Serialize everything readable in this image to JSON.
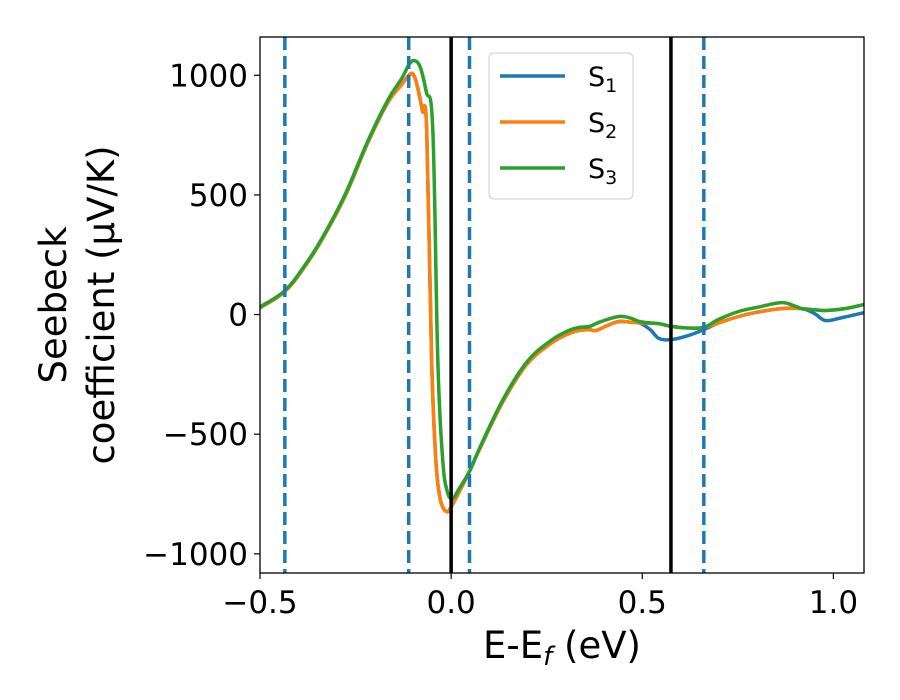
{
  "chart_data": {
    "type": "line",
    "title": "",
    "xlabel": "E-E",
    "xlabel_sub": "f",
    "xlabel_unit": " (eV)",
    "ylabel_line1": "Seebeck",
    "ylabel_line2": "coefficient  (μV/K)",
    "xlim": [
      -0.5,
      1.08
    ],
    "ylim": [
      -1080,
      1160
    ],
    "xticks": [
      -0.5,
      0.0,
      0.5,
      1.0
    ],
    "xtick_labels": [
      "−0.5",
      "0.0",
      "0.5",
      "1.0"
    ],
    "yticks": [
      -1000,
      -500,
      0,
      500,
      1000
    ],
    "ytick_labels": [
      "−1000",
      "−500",
      "0",
      "500",
      "1000"
    ],
    "grid": false,
    "legend_position": "upper-center",
    "vlines_dashed": [
      -0.435,
      -0.111,
      0.048,
      0.661
    ],
    "vlines_solid": [
      0.0,
      0.575
    ],
    "vline_dashed_color": "#1f77b4",
    "vline_solid_color": "#000000",
    "series": [
      {
        "name": "S",
        "sub": "1",
        "color": "#1f77b4",
        "x": [
          -0.5,
          -0.435,
          -0.383,
          -0.338,
          -0.278,
          -0.218,
          -0.166,
          -0.13,
          -0.106,
          -0.095,
          -0.085,
          -0.075,
          -0.064,
          -0.051,
          -0.04,
          -0.03,
          -0.02,
          -0.012,
          -0.004,
          0.02,
          0.048,
          0.074,
          0.134,
          0.197,
          0.257,
          0.3,
          0.33,
          0.361,
          0.379,
          0.41,
          0.439,
          0.47,
          0.492,
          0.52,
          0.544,
          0.578,
          0.62,
          0.661,
          0.7,
          0.752,
          0.8,
          0.864,
          0.917,
          0.95,
          0.98,
          1.03,
          1.08
        ],
        "y": [
          28,
          96,
          200,
          313,
          493,
          718,
          885,
          960,
          1006,
          990,
          930,
          850,
          773,
          -188,
          -606,
          -760,
          -810,
          -823,
          -815,
          -745,
          -655,
          -564,
          -368,
          -210,
          -125,
          -85,
          -68,
          -63,
          -67,
          -45,
          -29,
          -32,
          -35,
          -62,
          -100,
          -104,
          -88,
          -63,
          -35,
          -8,
          10,
          25,
          25,
          5,
          -25,
          -10,
          8
        ]
      },
      {
        "name": "S",
        "sub": "2",
        "color": "#ff7f0e",
        "x": [
          -0.5,
          -0.435,
          -0.383,
          -0.338,
          -0.278,
          -0.218,
          -0.166,
          -0.13,
          -0.106,
          -0.095,
          -0.085,
          -0.075,
          -0.064,
          -0.051,
          -0.04,
          -0.03,
          -0.02,
          -0.012,
          -0.004,
          0.02,
          0.048,
          0.074,
          0.134,
          0.197,
          0.257,
          0.3,
          0.33,
          0.361,
          0.379,
          0.41,
          0.439,
          0.47,
          0.492,
          0.52,
          0.544,
          0.578,
          0.62,
          0.661,
          0.7,
          0.752,
          0.8,
          0.864,
          0.917,
          0.95,
          0.98,
          1.03,
          1.08
        ],
        "y": [
          28,
          96,
          200,
          313,
          493,
          718,
          885,
          960,
          1006,
          990,
          930,
          850,
          773,
          -188,
          -606,
          -760,
          -810,
          -823,
          -815,
          -745,
          -655,
          -564,
          -368,
          -210,
          -125,
          -85,
          -68,
          -63,
          -67,
          -45,
          -29,
          -32,
          -35,
          -37,
          -38,
          -50,
          -56,
          -54,
          -35,
          -8,
          10,
          25,
          25,
          20,
          17,
          25,
          42
        ]
      },
      {
        "name": "S",
        "sub": "3",
        "color": "#2ca02c",
        "x": [
          -0.5,
          -0.435,
          -0.383,
          -0.338,
          -0.278,
          -0.218,
          -0.166,
          -0.13,
          -0.11,
          -0.095,
          -0.08,
          -0.065,
          -0.048,
          -0.035,
          -0.022,
          -0.01,
          0.004,
          0.02,
          0.048,
          0.074,
          0.134,
          0.197,
          0.257,
          0.3,
          0.33,
          0.361,
          0.39,
          0.439,
          0.47,
          0.492,
          0.52,
          0.544,
          0.578,
          0.62,
          0.661,
          0.7,
          0.752,
          0.8,
          0.864,
          0.9,
          0.917,
          0.95,
          0.98,
          1.03,
          1.08
        ],
        "y": [
          32,
          100,
          205,
          318,
          500,
          725,
          895,
          985,
          1045,
          1061,
          1030,
          930,
          773,
          -188,
          -606,
          -740,
          -768,
          -730,
          -655,
          -560,
          -360,
          -200,
          -113,
          -72,
          -55,
          -50,
          -30,
          -8,
          -15,
          -29,
          -35,
          -38,
          -50,
          -56,
          -54,
          -20,
          13,
          30,
          50,
          35,
          25,
          20,
          17,
          25,
          42
        ]
      }
    ]
  }
}
